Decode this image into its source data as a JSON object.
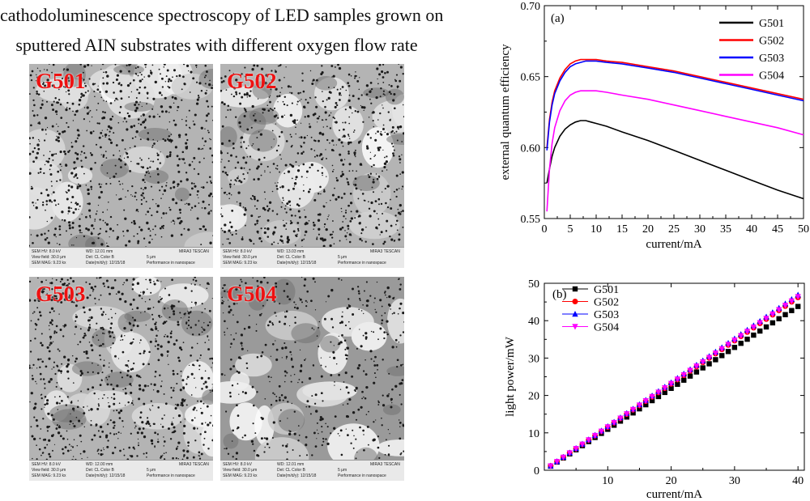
{
  "header": {
    "line1": "cathodoluminescence spectroscopy of LED samples grown on",
    "line2": "sputtered AIN substrates with different oxygen flow rate"
  },
  "panels": [
    {
      "label": "G501",
      "hv": "SEM HV: 8.0 kV",
      "wd": "WD: 12.01 mm",
      "brand": "MIRA3 TESCAN",
      "view": "View field: 30.0 μm",
      "det": "Det: CL Color B",
      "scale": "5 μm",
      "mag": "SEM MAG: 9.23 kx",
      "date": "Date(m/d/y): 12/15/18",
      "perf": "Performance in nanospace"
    },
    {
      "label": "G502",
      "hv": "SEM HV: 8.0 kV",
      "wd": "WD: 13.03 mm",
      "brand": "MIRA3 TESCAN",
      "view": "View field: 30.0 μm",
      "det": "Det: CL Color B",
      "scale": "5 μm",
      "mag": "SEM MAG: 9.23 kx",
      "date": "Date(m/d/y): 12/15/18",
      "perf": "Performance in nanospace"
    },
    {
      "label": "G503",
      "hv": "SEM HV: 8.0 kV",
      "wd": "WD: 12.00 mm",
      "brand": "MIRA3 TESCAN",
      "view": "View field: 30.0 μm",
      "det": "Det: CL Color B",
      "scale": "5 μm",
      "mag": "SEM MAG: 9.23 kx",
      "date": "Date(m/d/y): 12/15/18",
      "perf": "Performance in nanospace"
    },
    {
      "label": "G504",
      "hv": "SEM HV: 8.0 kV",
      "wd": "WD: 12.01 mm",
      "brand": "MIRA3 TESCAN",
      "view": "View field: 30.0 μm",
      "det": "Det: CL Color B",
      "scale": "5 μm",
      "mag": "SEM MAG: 9.23 kx",
      "date": "Date(m/d/y): 12/15/18",
      "perf": "Performance in nanospace"
    }
  ],
  "chart_data": [
    {
      "type": "line",
      "panel_label": "(a)",
      "xlabel": "current/mA",
      "ylabel": "external quantum efficiency",
      "xlim": [
        0,
        50
      ],
      "ylim": [
        0.55,
        0.7
      ],
      "xticks": [
        0,
        5,
        10,
        15,
        20,
        25,
        30,
        35,
        40,
        45,
        50
      ],
      "yticks": [
        0.55,
        0.6,
        0.65,
        0.7
      ],
      "ytick_labels": [
        "0.55",
        "0.60",
        "0.65",
        "0.70"
      ],
      "legend_position": "top-right",
      "series": [
        {
          "name": "G501",
          "color": "#000000",
          "x": [
            0.5,
            1,
            1.5,
            2,
            3,
            4,
            5,
            6,
            7,
            8,
            9,
            10,
            12,
            15,
            20,
            25,
            30,
            35,
            40,
            45,
            50
          ],
          "y": [
            0.575,
            0.585,
            0.594,
            0.6,
            0.608,
            0.613,
            0.616,
            0.618,
            0.619,
            0.619,
            0.618,
            0.617,
            0.615,
            0.611,
            0.605,
            0.598,
            0.591,
            0.584,
            0.577,
            0.57,
            0.564
          ]
        },
        {
          "name": "G502",
          "color": "#ff0000",
          "x": [
            0.5,
            1,
            1.5,
            2,
            3,
            4,
            5,
            6,
            7,
            8,
            9,
            10,
            12,
            15,
            20,
            25,
            30,
            35,
            40,
            45,
            50
          ],
          "y": [
            0.6,
            0.62,
            0.632,
            0.64,
            0.649,
            0.655,
            0.659,
            0.661,
            0.662,
            0.662,
            0.662,
            0.662,
            0.661,
            0.66,
            0.657,
            0.654,
            0.65,
            0.646,
            0.642,
            0.638,
            0.634
          ]
        },
        {
          "name": "G503",
          "color": "#0000ff",
          "x": [
            0.5,
            1,
            1.5,
            2,
            3,
            4,
            5,
            6,
            7,
            8,
            9,
            10,
            12,
            15,
            20,
            25,
            30,
            35,
            40,
            45,
            50
          ],
          "y": [
            0.598,
            0.618,
            0.63,
            0.638,
            0.647,
            0.653,
            0.657,
            0.659,
            0.66,
            0.661,
            0.661,
            0.661,
            0.66,
            0.659,
            0.656,
            0.653,
            0.649,
            0.645,
            0.641,
            0.637,
            0.633
          ]
        },
        {
          "name": "G504",
          "color": "#ff00ff",
          "x": [
            0.5,
            1,
            1.5,
            2,
            3,
            4,
            5,
            6,
            7,
            8,
            9,
            10,
            12,
            15,
            20,
            25,
            30,
            35,
            40,
            45,
            50
          ],
          "y": [
            0.555,
            0.585,
            0.603,
            0.614,
            0.626,
            0.633,
            0.637,
            0.639,
            0.64,
            0.64,
            0.64,
            0.64,
            0.639,
            0.637,
            0.634,
            0.63,
            0.626,
            0.622,
            0.618,
            0.614,
            0.609
          ]
        }
      ]
    },
    {
      "type": "scatter",
      "panel_label": "(b)",
      "xlabel": "current/mA",
      "ylabel": "light power/mW",
      "xlim": [
        0,
        41
      ],
      "ylim": [
        0,
        50
      ],
      "xticks": [
        10,
        20,
        30,
        40
      ],
      "yticks": [
        0,
        10,
        20,
        30,
        40,
        50
      ],
      "legend_position": "top-left",
      "x": [
        1,
        2,
        3,
        4,
        5,
        6,
        7,
        8,
        9,
        10,
        11,
        12,
        13,
        14,
        15,
        16,
        17,
        18,
        19,
        20,
        21,
        22,
        23,
        24,
        25,
        26,
        27,
        28,
        29,
        30,
        31,
        32,
        33,
        34,
        35,
        36,
        37,
        38,
        39,
        40
      ],
      "series": [
        {
          "name": "G501",
          "color": "#000000",
          "marker": "square",
          "slope": 1.095
        },
        {
          "name": "G502",
          "color": "#ff0000",
          "marker": "circle",
          "slope": 1.155
        },
        {
          "name": "G503",
          "color": "#0000ff",
          "marker": "triangle-up",
          "slope": 1.172
        },
        {
          "name": "G504",
          "color": "#ff00ff",
          "marker": "triangle-down",
          "slope": 1.16
        }
      ]
    }
  ]
}
